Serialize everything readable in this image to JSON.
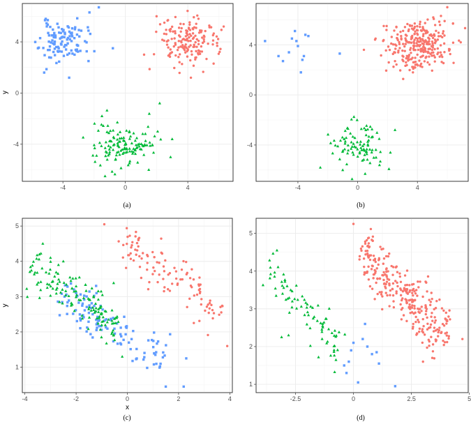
{
  "colors": {
    "cluster1": "#F8766D",
    "cluster2": "#619CFF",
    "cluster3": "#00BA38"
  },
  "chart_data": [
    {
      "type": "scatter",
      "caption": "(a)",
      "xlabel": "",
      "ylabel": "y",
      "xlim": [
        -6.6,
        6.9
      ],
      "ylim": [
        -6.9,
        7.0
      ],
      "xticks": [
        -4,
        0,
        4
      ],
      "yticks": [
        -4,
        0,
        4
      ],
      "grid": true,
      "series": [
        {
          "color": "#619CFF",
          "shape": "square",
          "center": [
            -4.0,
            4.0
          ],
          "spread": [
            0.75,
            0.75
          ],
          "n": 110,
          "seed": 11,
          "extra": [
            [
              -1.7,
              6.7
            ],
            [
              -2.3,
              6.3
            ],
            [
              -5.6,
              3.5
            ],
            [
              -5.2,
              1.6
            ],
            [
              -0.8,
              3.5
            ],
            [
              -3.6,
              1.2
            ],
            [
              -5.1,
              5.8
            ]
          ]
        },
        {
          "color": "#F8766D",
          "shape": "circle",
          "center": [
            4.0,
            4.0
          ],
          "spread": [
            0.95,
            0.95
          ],
          "n": 160,
          "seed": 23,
          "extra": [
            [
              2.0,
              6.0
            ],
            [
              6.3,
              5.2
            ],
            [
              1.2,
              3.0
            ],
            [
              4.2,
              1.2
            ],
            [
              2.5,
              5.5
            ]
          ]
        },
        {
          "color": "#00BA38",
          "shape": "triangle",
          "center": [
            0.0,
            -4.0
          ],
          "spread": [
            1.0,
            0.85
          ],
          "n": 130,
          "seed": 37,
          "extra": [
            [
              2.2,
              -0.8
            ],
            [
              -1.5,
              -1.8
            ],
            [
              -1.3,
              -6.5
            ],
            [
              3.0,
              -3.6
            ],
            [
              1.5,
              -6.0
            ]
          ]
        }
      ]
    },
    {
      "type": "scatter",
      "caption": "(b)",
      "xlabel": "",
      "ylabel": "",
      "xlim": [
        -6.8,
        7.4
      ],
      "ylim": [
        -6.9,
        7.3
      ],
      "xticks": [
        -4,
        0,
        4
      ],
      "yticks": [
        -4,
        0,
        4
      ],
      "grid": true,
      "series": [
        {
          "color": "#619CFF",
          "shape": "square",
          "center": [
            0,
            0
          ],
          "spread": [
            0,
            0
          ],
          "n": 0,
          "seed": 1,
          "extra": [
            [
              -6.2,
              4.3
            ],
            [
              -5.3,
              3.1
            ],
            [
              -5.0,
              2.7
            ],
            [
              -4.6,
              3.4
            ],
            [
              -4.4,
              4.5
            ],
            [
              -4.2,
              5.1
            ],
            [
              -4.1,
              4.3
            ],
            [
              -4.0,
              3.9
            ],
            [
              -3.7,
              2.8
            ],
            [
              -3.6,
              3.1
            ],
            [
              -3.8,
              1.8
            ],
            [
              -3.3,
              4.7
            ],
            [
              -3.5,
              4.8
            ],
            [
              -1.2,
              3.3
            ]
          ]
        },
        {
          "color": "#F8766D",
          "shape": "circle",
          "center": [
            4.0,
            4.0
          ],
          "spread": [
            1.05,
            0.95
          ],
          "n": 280,
          "seed": 53,
          "extra": [
            [
              6.0,
              7.0
            ],
            [
              6.9,
              4.2
            ],
            [
              1.2,
              4.5
            ],
            [
              3.7,
              1.8
            ]
          ]
        },
        {
          "color": "#00BA38",
          "shape": "triangle",
          "center": [
            0.0,
            -4.0
          ],
          "spread": [
            0.95,
            0.9
          ],
          "n": 90,
          "seed": 71,
          "extra": [
            [
              -2.5,
              -5.8
            ],
            [
              2.5,
              -2.8
            ],
            [
              0.5,
              -6.3
            ],
            [
              -1.0,
              -6.0
            ]
          ]
        }
      ]
    },
    {
      "type": "scatter",
      "caption": "(c)",
      "xlabel": "x",
      "ylabel": "y",
      "xlim": [
        -4.1,
        4.1
      ],
      "ylim": [
        0.28,
        5.22
      ],
      "xticks": [
        -4,
        -2,
        0,
        2,
        4
      ],
      "yticks": [
        1,
        2,
        3,
        4,
        5
      ],
      "grid": true,
      "series": [
        {
          "color": "#F8766D",
          "shape": "circle",
          "line": [
            -0.3,
            4.7,
            3.6,
            2.4
          ],
          "width": 0.33,
          "n": 110,
          "seed": 13,
          "extra": [
            [
              -0.9,
              5.05
            ],
            [
              3.9,
              1.6
            ],
            [
              1.4,
              3.5
            ]
          ]
        },
        {
          "color": "#619CFF",
          "shape": "square",
          "line": [
            -2.6,
            3.1,
            1.4,
            1.2
          ],
          "width": 0.3,
          "n": 120,
          "seed": 29,
          "extra": [
            [
              1.5,
              0.45
            ],
            [
              2.2,
              0.45
            ],
            [
              2.3,
              1.25
            ],
            [
              -2.0,
              3.1
            ]
          ]
        },
        {
          "color": "#00BA38",
          "shape": "triangle",
          "line": [
            -3.8,
            3.8,
            -0.3,
            2.2
          ],
          "width": 0.3,
          "n": 140,
          "seed": 43,
          "extra": [
            [
              -3.3,
              4.5
            ],
            [
              -3.0,
              4.1
            ],
            [
              -2.5,
              4.0
            ],
            [
              -0.2,
              1.3
            ]
          ]
        }
      ]
    },
    {
      "type": "scatter",
      "caption": "(d)",
      "xlabel": "",
      "ylabel": "",
      "xlim": [
        -4.2,
        4.95
      ],
      "ylim": [
        0.78,
        5.4
      ],
      "xticks": [
        -2.5,
        0.0,
        2.5,
        5.0
      ],
      "yticks": [
        1,
        2,
        3,
        4,
        5
      ],
      "grid": true,
      "series": [
        {
          "color": "#F8766D",
          "shape": "circle",
          "line": [
            0.3,
            4.6,
            4.1,
            2.2
          ],
          "width": 0.33,
          "n": 300,
          "seed": 17,
          "extra": [
            [
              0.0,
              5.25
            ],
            [
              4.7,
              2.2
            ],
            [
              3.0,
              1.6
            ],
            [
              3.4,
              1.7
            ]
          ]
        },
        {
          "color": "#00BA38",
          "shape": "triangle",
          "line": [
            -3.8,
            4.0,
            -0.4,
            2.0
          ],
          "width": 0.3,
          "n": 80,
          "seed": 61,
          "extra": [
            [
              -3.3,
              4.55
            ],
            [
              -2.8,
              2.3
            ],
            [
              -3.1,
              2.25
            ]
          ]
        },
        {
          "color": "#619CFF",
          "shape": "square",
          "center": [
            0,
            0
          ],
          "spread": [
            0,
            0
          ],
          "n": 0,
          "seed": 3,
          "extra": [
            [
              -0.4,
              1.5
            ],
            [
              -0.3,
              1.3
            ],
            [
              -0.2,
              1.6
            ],
            [
              0.2,
              1.05
            ],
            [
              0.5,
              2.6
            ],
            [
              0.6,
              2.0
            ],
            [
              0.8,
              1.8
            ],
            [
              1.0,
              1.85
            ],
            [
              1.1,
              1.55
            ],
            [
              1.8,
              0.95
            ],
            [
              -0.1,
              1.9
            ],
            [
              0.4,
              2.2
            ],
            [
              0.0,
              2.1
            ]
          ]
        }
      ]
    }
  ]
}
